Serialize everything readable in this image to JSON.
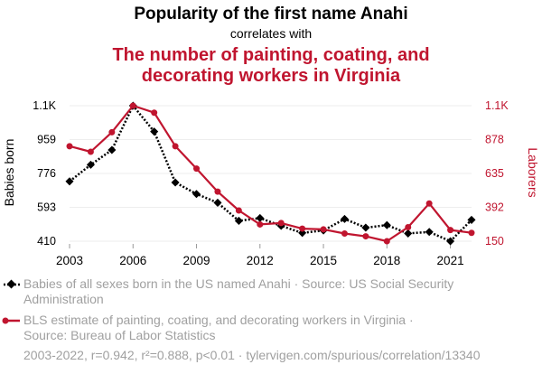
{
  "colors": {
    "series1": "#000000",
    "series2": "#c0152f",
    "grid": "#eeeeee",
    "muted": "#a0a0a0"
  },
  "chart_data": {
    "type": "line",
    "title": "Popularity of the first name Anahi",
    "subtitle": "correlates with",
    "title2_line1": "The number of painting, coating, and",
    "title2_line2": "decorating workers in Virginia",
    "ylabel_left": "Babies born",
    "ylabel_right": "Laborers",
    "x": [
      2003,
      2004,
      2005,
      2006,
      2007,
      2008,
      2009,
      2010,
      2011,
      2012,
      2013,
      2014,
      2015,
      2016,
      2017,
      2018,
      2019,
      2020,
      2021,
      2022
    ],
    "xticks": [
      "2003",
      "2006",
      "2009",
      "2012",
      "2015",
      "2018",
      "2021"
    ],
    "xlim": [
      2003,
      2022
    ],
    "yticks_left": [
      "410",
      "593",
      "776",
      "959",
      "1.1K"
    ],
    "ylim_left": [
      410,
      1142
    ],
    "yticks_right": [
      "150",
      "392",
      "635",
      "878",
      "1.1K"
    ],
    "ylim_right": [
      150,
      1120
    ],
    "grid": true,
    "series": [
      {
        "name": "Babies of all sexes born in the US named Anahi · Source: US Social Security Administration",
        "axis": "left",
        "marker": "diamond",
        "line_style": "dotted",
        "values": [
          733,
          823,
          903,
          1142,
          1002,
          727,
          665,
          618,
          520,
          535,
          493,
          455,
          468,
          530,
          483,
          497,
          452,
          460,
          410,
          525
        ]
      },
      {
        "name": "BLS estimate of painting, coating, and decorating workers in Virginia · Source: Bureau of Labor Statistics",
        "axis": "right",
        "marker": "circle",
        "line_style": "solid",
        "values": [
          830,
          790,
          930,
          1120,
          1070,
          830,
          670,
          505,
          370,
          270,
          280,
          240,
          235,
          205,
          185,
          150,
          250,
          420,
          230,
          210
        ]
      }
    ]
  },
  "legend": {
    "s1_line1": "Babies of all sexes born in the US named Anahi · Source: US Social Security",
    "s1_line2": "Administration",
    "s2_line1": "BLS estimate of painting, coating, and decorating workers in Virginia ·",
    "s2_line2": "Source: Bureau of Labor Statistics"
  },
  "footer": "2003-2022, r=0.942, r²=0.888, p<0.01 · tylervigen.com/spurious/correlation/13340"
}
